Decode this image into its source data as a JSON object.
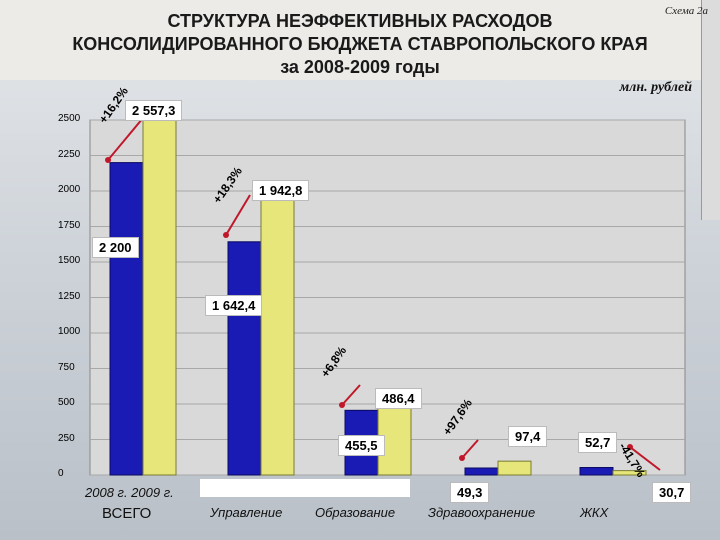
{
  "slide": {
    "schema_label": "Схема 2а",
    "title_line1": "СТРУКТУРА НЕЭФФЕКТИВНЫХ РАСХОДОВ",
    "title_line2": "КОНСОЛИДИРОВАННОГО БЮДЖЕТА СТАВРОПОЛЬСКОГО КРАЯ",
    "title_line3": "за 2008-2009 годы",
    "units": "млн. рублей"
  },
  "colors": {
    "bar_2008": "#1a1ab4",
    "bar_2009": "#e6e67a",
    "plot_bg": "#d9d9d9",
    "arrow": "#c0182a"
  },
  "chart_data": {
    "type": "bar",
    "categories": [
      "ВСЕГО",
      "Управление",
      "Образование",
      "Здравоохранение",
      "ЖКХ"
    ],
    "series": [
      {
        "name": "2008 г.",
        "values": [
          2200,
          1642.4,
          455.5,
          49.3,
          52.7
        ]
      },
      {
        "name": "2009 г.",
        "values": [
          2557.3,
          1942.8,
          486.4,
          97.4,
          30.7
        ]
      }
    ],
    "ylim": [
      0,
      2500
    ],
    "yticks": [
      "0",
      "250",
      "500",
      "750",
      "1000",
      "1250",
      "1500",
      "1750",
      "2000",
      "2250",
      "2500"
    ],
    "data_labels": {
      "s2008": [
        "2 200",
        "1 642,4",
        "455,5",
        "49,3",
        "52,7"
      ],
      "s2009": [
        "2 557,3",
        "1 942,8",
        "486,4",
        "97,4",
        "30,7"
      ]
    },
    "changes": [
      "+16,2%",
      "+18,3%",
      "+6,8%",
      "+97,6%",
      "-41,7%"
    ],
    "x_label_years": "2008 г. 2009 г.",
    "grid": true
  }
}
